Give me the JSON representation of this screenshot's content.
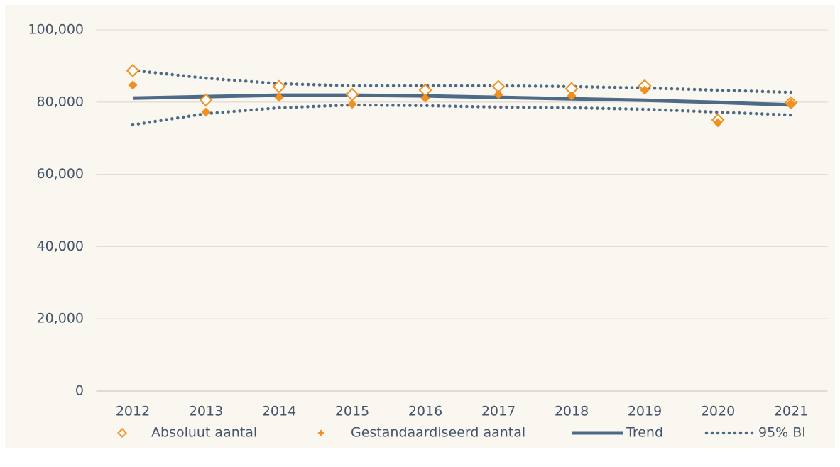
{
  "chart_data": {
    "type": "line",
    "categories": [
      "2012",
      "2013",
      "2014",
      "2015",
      "2016",
      "2017",
      "2018",
      "2019",
      "2020",
      "2021"
    ],
    "series": [
      {
        "name": "Absoluut aantal",
        "color": "#f0901e",
        "marker": "diamond-open",
        "values": [
          88700,
          80550,
          84300,
          82100,
          83300,
          84300,
          83700,
          84500,
          75050,
          79800
        ]
      },
      {
        "name": "Gestandaardiseerd aantal",
        "color": "#f0901e",
        "marker": "diamond",
        "values": [
          84700,
          77200,
          81300,
          79400,
          81100,
          82100,
          81700,
          83300,
          74300,
          79600
        ]
      },
      {
        "name": "Trend",
        "color": "#4d6a86",
        "line": "solid",
        "values": [
          81100,
          81500,
          81900,
          81900,
          81700,
          81300,
          80900,
          80500,
          79900,
          79200
        ]
      }
    ],
    "band": {
      "name": "95% BI",
      "color": "#4d6a86",
      "line": "dotted",
      "upper": [
        88800,
        86600,
        85100,
        84500,
        84500,
        84500,
        84300,
        83900,
        83300,
        82700
      ],
      "lower": [
        73700,
        76800,
        78400,
        79200,
        79000,
        78600,
        78400,
        78000,
        77200,
        76400
      ]
    },
    "ylim": [
      0,
      100000
    ],
    "yticks": [
      0,
      {
        "value": 20000,
        "label": "20,000"
      },
      {
        "value": 40000,
        "label": "40,000"
      },
      {
        "value": 60000,
        "label": "60,000"
      },
      {
        "value": 80000,
        "label": "80,000"
      },
      {
        "value": 100000,
        "label": "100,000"
      }
    ],
    "grid": true,
    "legend": "bottom"
  }
}
